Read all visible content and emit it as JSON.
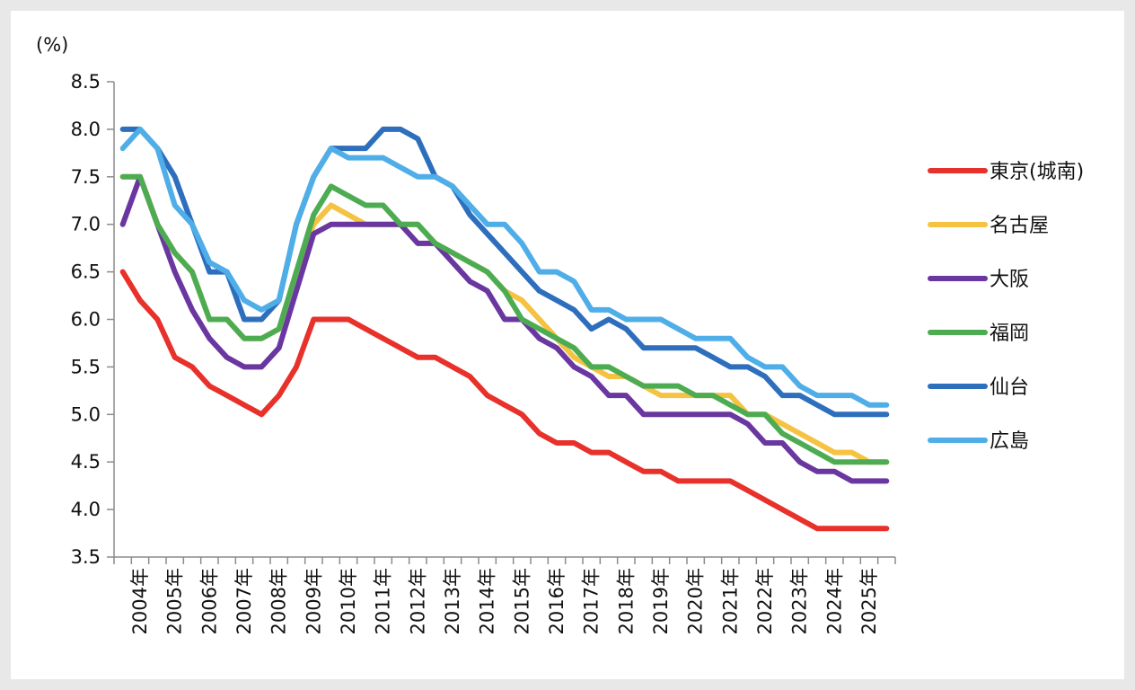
{
  "chart_data": {
    "type": "line",
    "title": "",
    "ylabel": "(%)",
    "xlabel": "",
    "ylim": [
      3.5,
      8.5
    ],
    "yticks": [
      "8.5",
      "8.0",
      "7.5",
      "7.0",
      "6.5",
      "6.0",
      "5.5",
      "5.0",
      "4.5",
      "4.0",
      "3.5"
    ],
    "ytick_values": [
      8.5,
      8.0,
      7.5,
      7.0,
      6.5,
      6.0,
      5.5,
      5.0,
      4.5,
      4.0,
      3.5
    ],
    "grid": false,
    "legend_position": "right",
    "x_period": "half-year",
    "x_labels": [
      "2004年",
      "2005年",
      "2006年",
      "2007年",
      "2008年",
      "2009年",
      "2010年",
      "2011年",
      "2012年",
      "2013年",
      "2014年",
      "2015年",
      "2016年",
      "2017年",
      "2018年",
      "2019年",
      "2020年",
      "2021年",
      "2022年",
      "2023年",
      "2024年",
      "2025年"
    ],
    "series": [
      {
        "name": "東京(城南)",
        "color": "#e8312a",
        "values": [
          6.5,
          6.2,
          6.0,
          5.6,
          5.5,
          5.3,
          5.2,
          5.1,
          5.0,
          5.2,
          5.5,
          6.0,
          6.0,
          6.0,
          5.9,
          5.8,
          5.7,
          5.6,
          5.6,
          5.5,
          5.4,
          5.2,
          5.1,
          5.0,
          4.8,
          4.7,
          4.7,
          4.6,
          4.6,
          4.5,
          4.4,
          4.4,
          4.3,
          4.3,
          4.3,
          4.3,
          4.2,
          4.1,
          4.0,
          3.9,
          3.8,
          3.8,
          3.8,
          3.8,
          3.8
        ]
      },
      {
        "name": "名古屋",
        "color": "#f5c242",
        "values": [
          7.5,
          7.5,
          7.0,
          6.7,
          6.5,
          6.0,
          6.0,
          5.8,
          5.8,
          5.9,
          6.5,
          7.0,
          7.2,
          7.1,
          7.0,
          7.0,
          7.0,
          7.0,
          6.8,
          6.7,
          6.6,
          6.5,
          6.3,
          6.2,
          6.0,
          5.8,
          5.6,
          5.5,
          5.4,
          5.4,
          5.3,
          5.2,
          5.2,
          5.2,
          5.2,
          5.2,
          5.0,
          5.0,
          4.9,
          4.8,
          4.7,
          4.6,
          4.6,
          4.5,
          4.5
        ]
      },
      {
        "name": "大阪",
        "color": "#6a36a0",
        "values": [
          7.0,
          7.5,
          7.0,
          6.5,
          6.1,
          5.8,
          5.6,
          5.5,
          5.5,
          5.7,
          6.3,
          6.9,
          7.0,
          7.0,
          7.0,
          7.0,
          7.0,
          6.8,
          6.8,
          6.6,
          6.4,
          6.3,
          6.0,
          6.0,
          5.8,
          5.7,
          5.5,
          5.4,
          5.2,
          5.2,
          5.0,
          5.0,
          5.0,
          5.0,
          5.0,
          5.0,
          4.9,
          4.7,
          4.7,
          4.5,
          4.4,
          4.4,
          4.3,
          4.3,
          4.3
        ]
      },
      {
        "name": "福岡",
        "color": "#4dac52",
        "values": [
          7.5,
          7.5,
          7.0,
          6.7,
          6.5,
          6.0,
          6.0,
          5.8,
          5.8,
          5.9,
          6.5,
          7.1,
          7.4,
          7.3,
          7.2,
          7.2,
          7.0,
          7.0,
          6.8,
          6.7,
          6.6,
          6.5,
          6.3,
          6.0,
          5.9,
          5.8,
          5.7,
          5.5,
          5.5,
          5.4,
          5.3,
          5.3,
          5.3,
          5.2,
          5.2,
          5.1,
          5.0,
          5.0,
          4.8,
          4.7,
          4.6,
          4.5,
          4.5,
          4.5,
          4.5
        ]
      },
      {
        "name": "仙台",
        "color": "#2e6fbd",
        "values": [
          8.0,
          8.0,
          7.8,
          7.5,
          7.0,
          6.5,
          6.5,
          6.0,
          6.0,
          6.2,
          7.0,
          7.5,
          7.8,
          7.8,
          7.8,
          8.0,
          8.0,
          7.9,
          7.5,
          7.4,
          7.1,
          6.9,
          6.7,
          6.5,
          6.3,
          6.2,
          6.1,
          5.9,
          6.0,
          5.9,
          5.7,
          5.7,
          5.7,
          5.7,
          5.6,
          5.5,
          5.5,
          5.4,
          5.2,
          5.2,
          5.1,
          5.0,
          5.0,
          5.0,
          5.0
        ]
      },
      {
        "name": "広島",
        "color": "#4faee8",
        "values": [
          7.8,
          8.0,
          7.8,
          7.2,
          7.0,
          6.6,
          6.5,
          6.2,
          6.1,
          6.2,
          7.0,
          7.5,
          7.8,
          7.7,
          7.7,
          7.7,
          7.6,
          7.5,
          7.5,
          7.4,
          7.2,
          7.0,
          7.0,
          6.8,
          6.5,
          6.5,
          6.4,
          6.1,
          6.1,
          6.0,
          6.0,
          6.0,
          5.9,
          5.8,
          5.8,
          5.8,
          5.6,
          5.5,
          5.5,
          5.3,
          5.2,
          5.2,
          5.2,
          5.1,
          5.1
        ]
      }
    ]
  }
}
